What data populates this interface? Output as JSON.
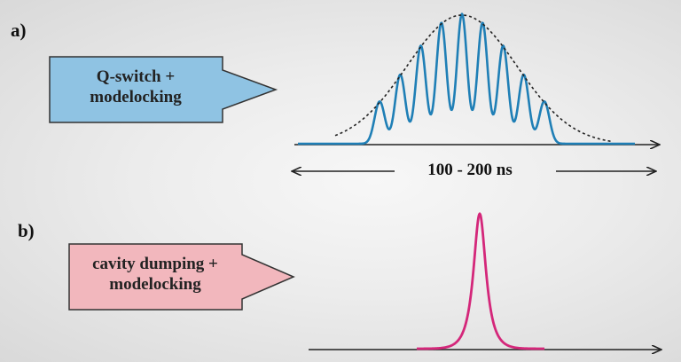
{
  "panels": {
    "a": {
      "label": "a)",
      "box_line1": "Q-switch +",
      "box_line2": "modelocking",
      "box_color": "#8fc3e3",
      "pulse_color": "#1f7fb6",
      "envelope_color": "#222222",
      "span_label": "100 - 200 ns",
      "pulse_count": 9
    },
    "b": {
      "label": "b)",
      "box_line1": "cavity dumping +",
      "box_line2": "modelocking",
      "box_color": "#f2b7bd",
      "pulse_color": "#d4277a"
    }
  }
}
